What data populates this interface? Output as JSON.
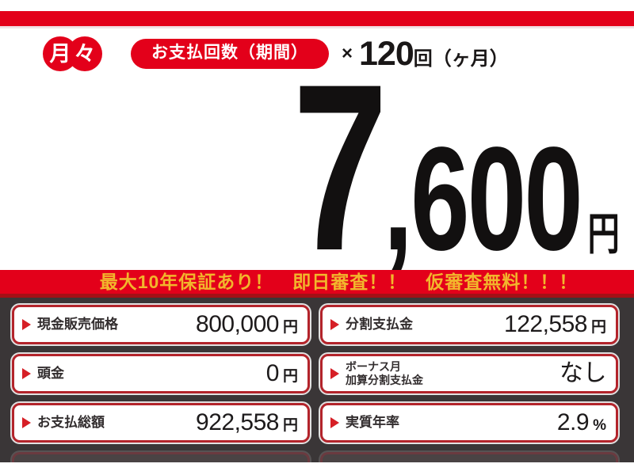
{
  "header": {
    "badge": "月々",
    "badge_char1": "月",
    "badge_char2": "々",
    "pill_label": "お支払回数（期間）",
    "multiply_sign": "×",
    "count_number": "120",
    "count_unit": "回（ヶ月）"
  },
  "price": {
    "first_digit": "7",
    "rest_digits": ",600",
    "currency": "円",
    "full_value": "7,600円"
  },
  "banner": {
    "promo_text": "最大10年保証あり！　即日審査！！　仮審査無料！！！"
  },
  "cards": [
    {
      "label_line1": "現金販売価格",
      "label_line2": "",
      "value": "800,000",
      "suffix": "円"
    },
    {
      "label_line1": "分割支払金",
      "label_line2": "",
      "value": "122,558",
      "suffix": "円"
    },
    {
      "label_line1": "頭金",
      "label_line2": "",
      "value": "0",
      "suffix": "円"
    },
    {
      "label_line1": "ボーナス月",
      "label_line2": "加算分割支払金",
      "value": "なし",
      "suffix": ""
    },
    {
      "label_line1": "お支払総額",
      "label_line2": "",
      "value": "922,558",
      "suffix": "円"
    },
    {
      "label_line1": "実質年率",
      "label_line2": "",
      "value": "2.9",
      "suffix": "%"
    }
  ],
  "colors": {
    "accent_red": "#e3001a",
    "banner_shadow_red": "#a31016",
    "promo_yellow": "#f2b62c",
    "dark_background": "#3a3637",
    "card_border_red": "#b3242b",
    "text_dark": "#1d1a1b"
  }
}
